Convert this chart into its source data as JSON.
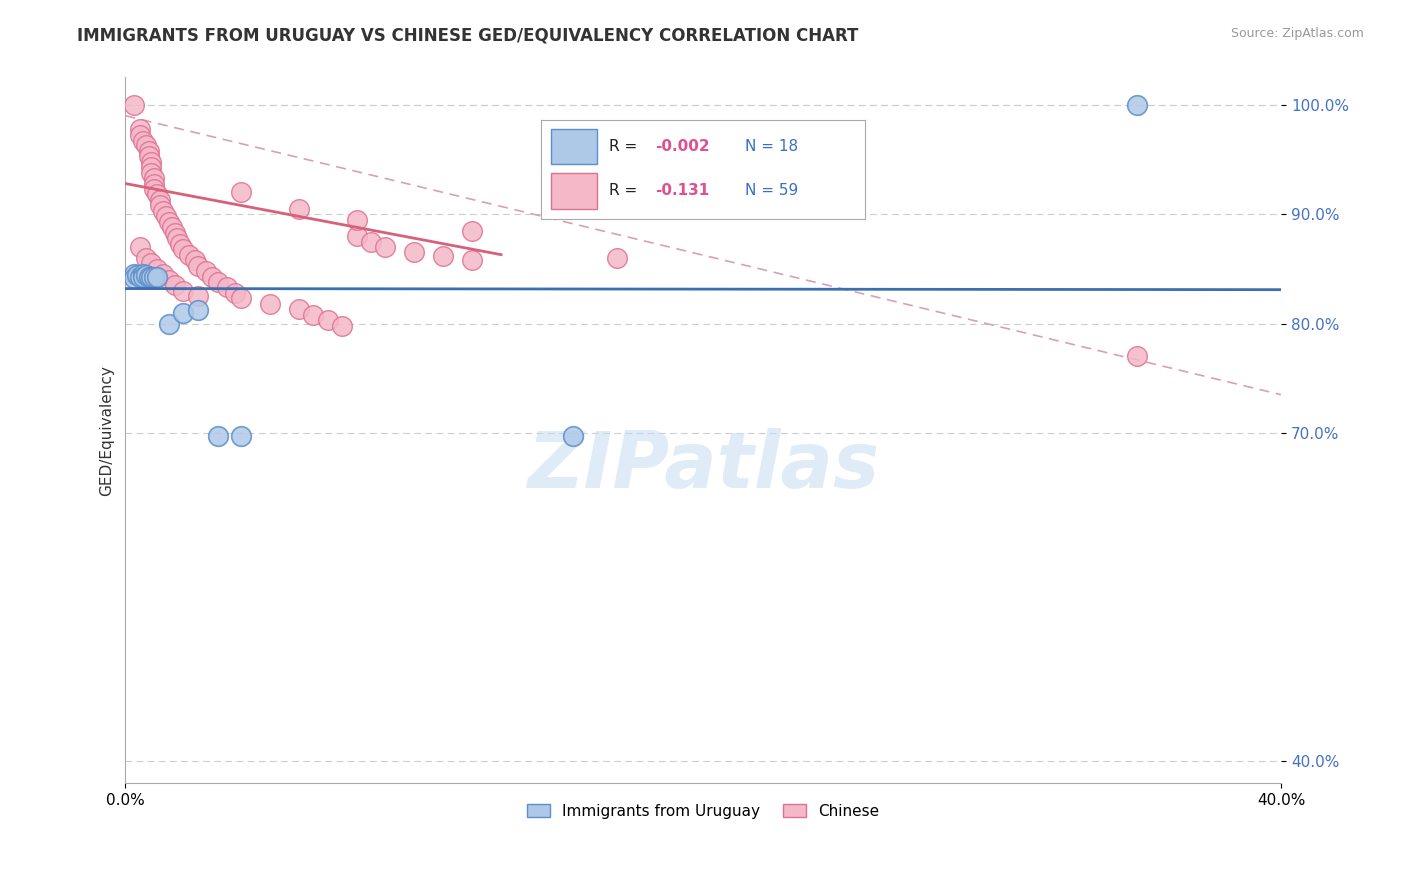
{
  "title": "IMMIGRANTS FROM URUGUAY VS CHINESE GED/EQUIVALENCY CORRELATION CHART",
  "source_text": "Source: ZipAtlas.com",
  "ylabel": "GED/Equivalency",
  "x_min": 0.0,
  "x_max": 0.4,
  "y_min": 0.38,
  "y_max": 1.025,
  "y_ticks": [
    0.4,
    0.7,
    0.8,
    0.9,
    1.0
  ],
  "y_tick_labels": [
    "40.0%",
    "70.0%",
    "80.0%",
    "90.0%",
    "100.0%"
  ],
  "watermark": "ZIPatlas",
  "blue_fill": "#aec8e8",
  "blue_edge": "#5b8fc9",
  "pink_fill": "#f4b8c8",
  "pink_edge": "#e07090",
  "blue_line_color": "#3a6fb0",
  "pink_line_color": "#d9607a",
  "dashed_line_color": "#d9a0b0",
  "background_color": "#ffffff",
  "grid_color": "#cccccc",
  "blue_pts_x": [
    0.003,
    0.003,
    0.004,
    0.005,
    0.006,
    0.006,
    0.007,
    0.008,
    0.009,
    0.01,
    0.011,
    0.015,
    0.02,
    0.025,
    0.032,
    0.04,
    0.155,
    0.35
  ],
  "blue_pts_y": [
    0.845,
    0.842,
    0.844,
    0.843,
    0.845,
    0.843,
    0.844,
    0.843,
    0.843,
    0.843,
    0.843,
    0.8,
    0.81,
    0.812,
    0.697,
    0.697,
    0.697,
    1.0
  ],
  "pink_pts_x": [
    0.003,
    0.005,
    0.005,
    0.006,
    0.007,
    0.008,
    0.008,
    0.009,
    0.009,
    0.009,
    0.01,
    0.01,
    0.01,
    0.011,
    0.012,
    0.012,
    0.013,
    0.014,
    0.015,
    0.016,
    0.017,
    0.018,
    0.019,
    0.02,
    0.022,
    0.024,
    0.025,
    0.028,
    0.03,
    0.032,
    0.035,
    0.038,
    0.04,
    0.05,
    0.06,
    0.065,
    0.07,
    0.075,
    0.08,
    0.085,
    0.09,
    0.1,
    0.11,
    0.12,
    0.04,
    0.06,
    0.08,
    0.12,
    0.17,
    0.35,
    0.005,
    0.007,
    0.009,
    0.011,
    0.013,
    0.015,
    0.017,
    0.02,
    0.025
  ],
  "pink_pts_y": [
    1.0,
    0.978,
    0.972,
    0.967,
    0.963,
    0.958,
    0.953,
    0.948,
    0.943,
    0.938,
    0.933,
    0.928,
    0.923,
    0.918,
    0.913,
    0.908,
    0.903,
    0.898,
    0.893,
    0.888,
    0.883,
    0.878,
    0.873,
    0.868,
    0.863,
    0.858,
    0.853,
    0.848,
    0.843,
    0.838,
    0.833,
    0.828,
    0.823,
    0.818,
    0.813,
    0.808,
    0.803,
    0.798,
    0.88,
    0.875,
    0.87,
    0.865,
    0.862,
    0.858,
    0.92,
    0.905,
    0.895,
    0.885,
    0.86,
    0.77,
    0.87,
    0.86,
    0.855,
    0.85,
    0.845,
    0.84,
    0.835,
    0.83,
    0.825
  ],
  "blue_line_x": [
    0.0,
    0.4
  ],
  "blue_line_y": [
    0.832,
    0.831
  ],
  "pink_line_x": [
    0.0,
    0.13
  ],
  "pink_line_y": [
    0.928,
    0.863
  ],
  "dash_line_x": [
    0.0,
    0.4
  ],
  "dash_line_y": [
    0.99,
    0.735
  ]
}
